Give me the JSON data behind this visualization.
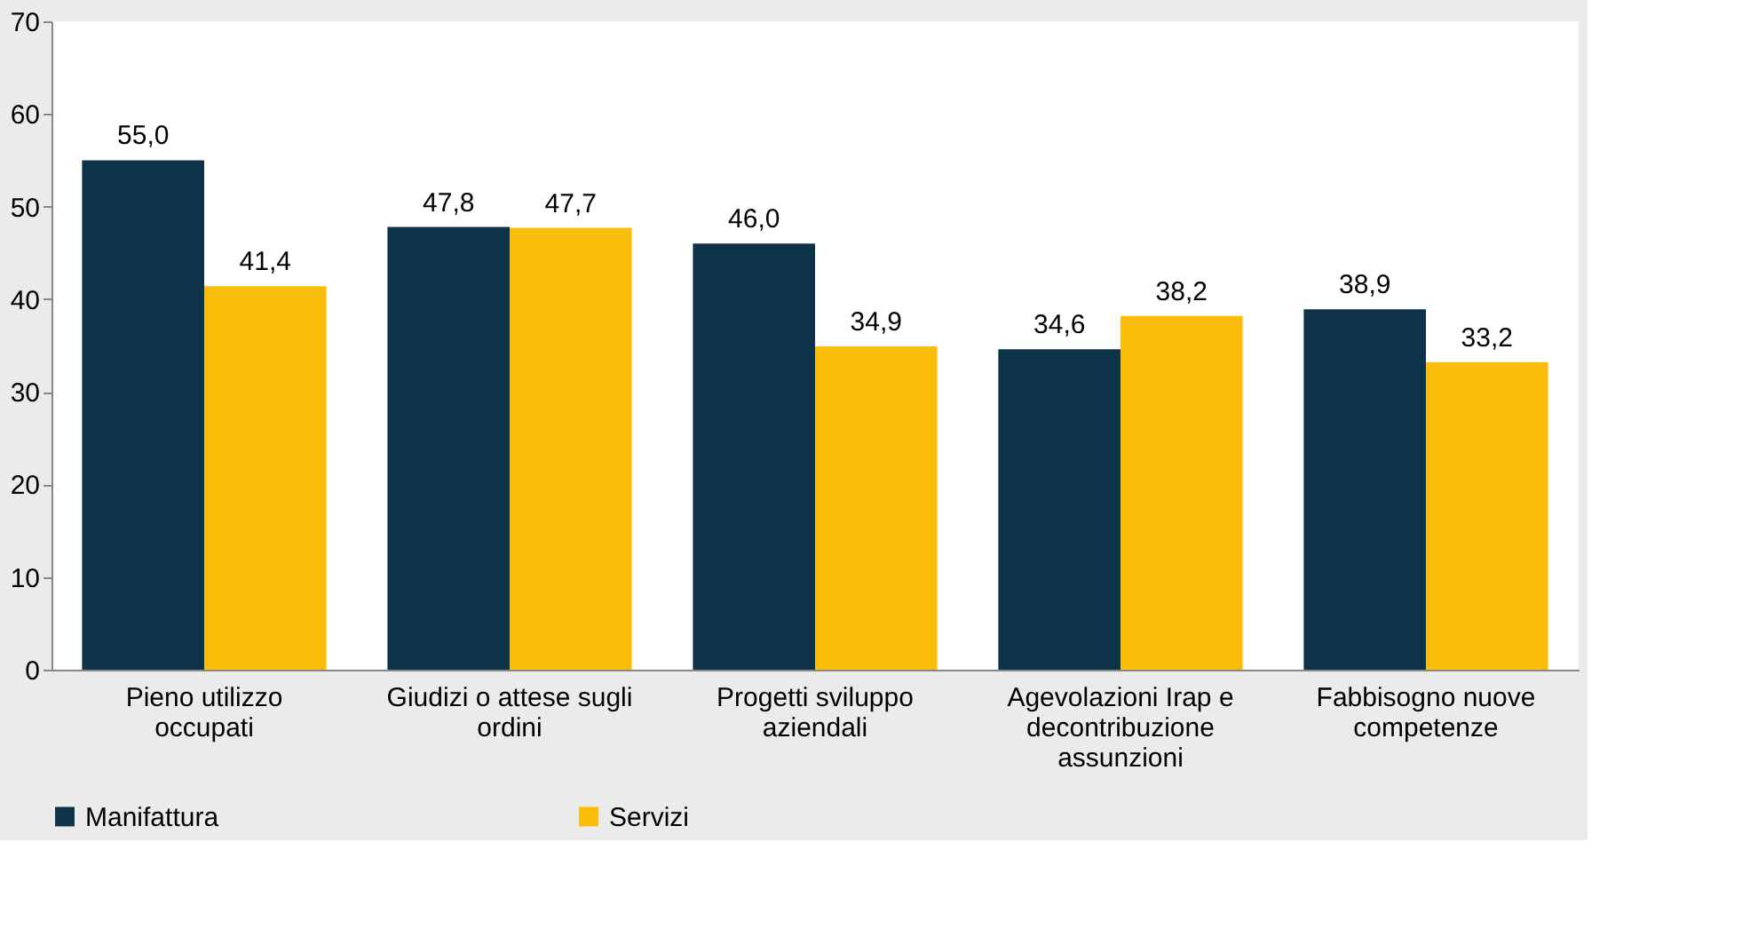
{
  "chart_data": {
    "type": "bar",
    "categories": [
      "Pieno utilizzo occupati",
      "Giudizi o attese sugli ordini",
      "Progetti sviluppo aziendali",
      "Agevolazioni Irap e decontribuzione assunzioni",
      "Fabbisogno nuove competenze"
    ],
    "series": [
      {
        "name": "Manifattura",
        "color": "#0d3349",
        "values": [
          55.0,
          47.8,
          46.0,
          34.6,
          38.9
        ],
        "value_labels": [
          "55,0",
          "47,8",
          "46,0",
          "34,6",
          "38,9"
        ]
      },
      {
        "name": "Servizi",
        "color": "#fbbd0b",
        "values": [
          41.4,
          47.7,
          34.9,
          38.2,
          33.2
        ],
        "value_labels": [
          "41,4",
          "47,7",
          "34,9",
          "38,2",
          "33,2"
        ]
      }
    ],
    "ylim": [
      0,
      70
    ],
    "yticks": [
      0,
      10,
      20,
      30,
      40,
      50,
      60,
      70
    ],
    "grid": false,
    "legend": "bottom"
  }
}
